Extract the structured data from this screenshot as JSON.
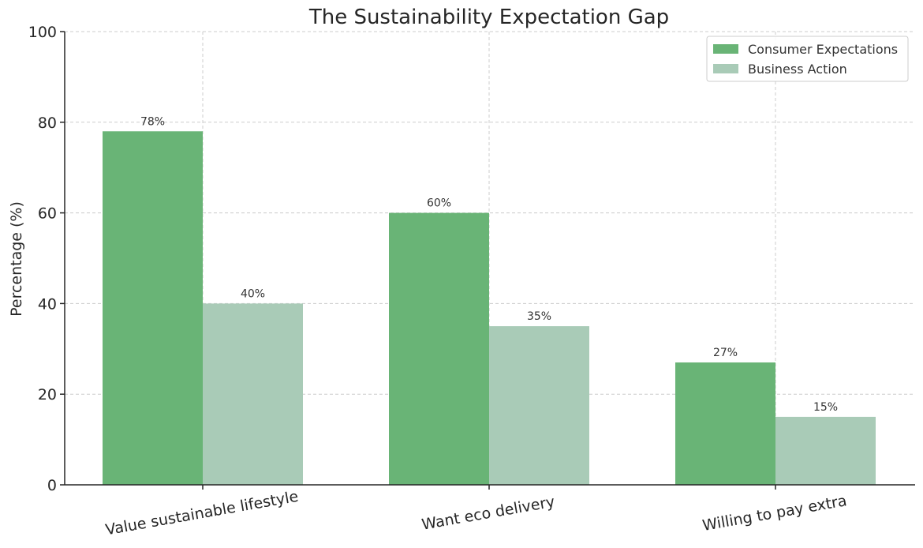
{
  "chart_data": {
    "type": "bar",
    "title": "The Sustainability Expectation Gap",
    "xlabel": "",
    "ylabel": "Percentage (%)",
    "ylim": [
      0,
      100
    ],
    "yticks": [
      0,
      20,
      40,
      60,
      80,
      100
    ],
    "grid": true,
    "legend_position": "top-right",
    "categories": [
      "Value sustainable lifestyle",
      "Want eco delivery",
      "Willing to pay extra"
    ],
    "series": [
      {
        "name": "Consumer Expectations",
        "values": [
          78,
          60,
          27
        ],
        "labels": [
          "78%",
          "60%",
          "27%"
        ],
        "color": "#69b476"
      },
      {
        "name": "Business Action",
        "values": [
          40,
          35,
          15
        ],
        "labels": [
          "40%",
          "35%",
          "15%"
        ],
        "color": "#a9cbb7"
      }
    ]
  }
}
